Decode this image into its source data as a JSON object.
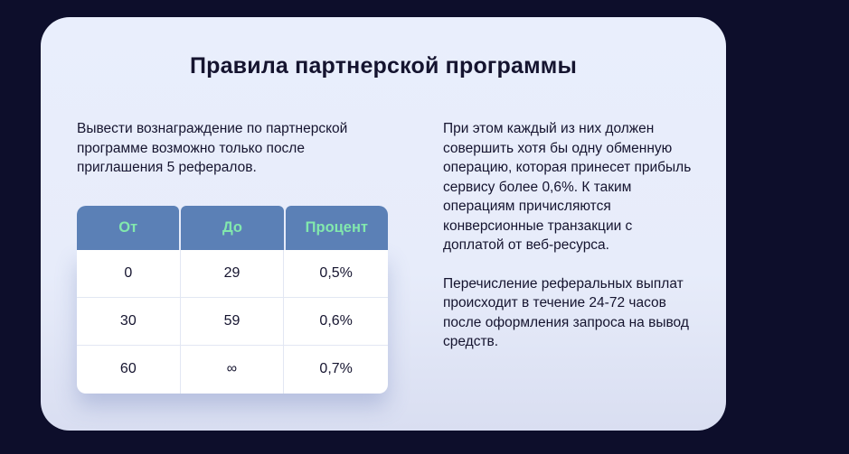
{
  "page": {
    "background_color": "#0d0e2b"
  },
  "card": {
    "background_color": "#e8edfb",
    "text_color": "#15142f",
    "title": "Правила партнерской программы",
    "intro_paragraph": "Вывести вознаграждение по партнерской программе возможно только после приглашения 5 рефералов.",
    "conditions_paragraph": "При этом каждый из них должен совершить хотя бы одну обменную операцию, которая принесет прибыль сервису более 0,6%. К таким операциям причисляются конверсионные транзакции с доплатой от веб-ресурса.",
    "payout_timing_paragraph": "Перечисление реферальных выплат происходит в течение 24-72 часов после оформления запроса на вывод средств."
  },
  "referral_table": {
    "header_bg_color": "#5b80b6",
    "header_text_color": "#82e8ad",
    "headers": [
      "От",
      "До",
      "Процент"
    ],
    "rows": [
      [
        "0",
        "29",
        "0,5%"
      ],
      [
        "30",
        "59",
        "0,6%"
      ],
      [
        "60",
        "∞",
        "0,7%"
      ]
    ]
  }
}
